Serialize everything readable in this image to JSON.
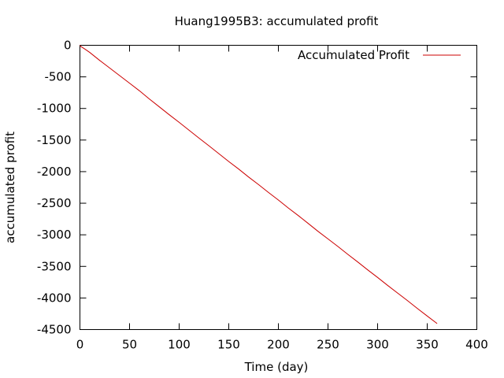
{
  "chart_data": {
    "type": "line",
    "title": "Huang1995B3: accumulated profit",
    "xlabel": "Time (day)",
    "ylabel": "accumulated profit",
    "xlim": [
      0,
      400
    ],
    "ylim": [
      -4500,
      0
    ],
    "xticks": [
      0,
      50,
      100,
      150,
      200,
      250,
      300,
      350,
      400
    ],
    "yticks": [
      0,
      -500,
      -1000,
      -1500,
      -2000,
      -2500,
      -3000,
      -3500,
      -4000,
      -4500
    ],
    "grid": false,
    "legend_position": "top-right",
    "series": [
      {
        "name": "Accumulated Profit",
        "color": "#cc0000",
        "x": [
          0,
          1,
          5,
          10,
          20,
          30,
          40,
          50,
          60,
          70,
          80,
          90,
          100,
          110,
          120,
          130,
          140,
          150,
          160,
          170,
          180,
          190,
          200,
          210,
          220,
          230,
          240,
          250,
          260,
          270,
          280,
          290,
          300,
          310,
          320,
          330,
          340,
          350,
          360
        ],
        "y": [
          0,
          -20,
          -60,
          -115,
          -240,
          -360,
          -480,
          -600,
          -720,
          -850,
          -975,
          -1100,
          -1220,
          -1345,
          -1470,
          -1590,
          -1715,
          -1840,
          -1960,
          -2085,
          -2205,
          -2330,
          -2450,
          -2575,
          -2695,
          -2820,
          -2945,
          -3065,
          -3185,
          -3310,
          -3430,
          -3555,
          -3675,
          -3800,
          -3920,
          -4040,
          -4165,
          -4285,
          -4405
        ]
      }
    ]
  }
}
